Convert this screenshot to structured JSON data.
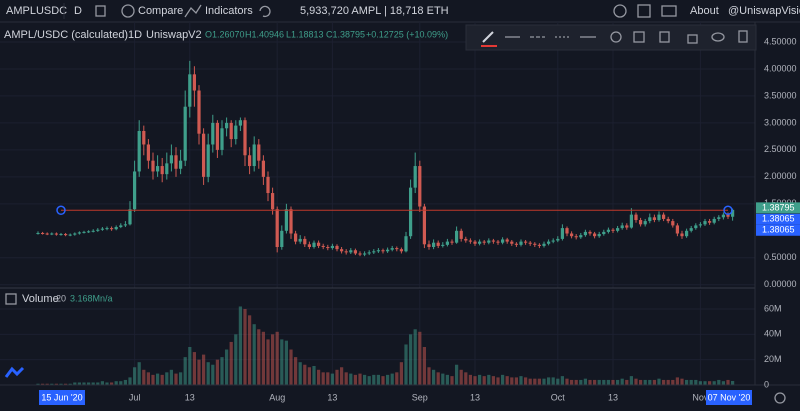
{
  "toolbar": {
    "symbol": "AMPLUSDC",
    "interval": "D",
    "compare": "Compare",
    "indicators": "Indicators",
    "supply": "5,933,720 AMPL | 18,718 ETH",
    "about": "About",
    "account": "@UniswapVision"
  },
  "chart_data": {
    "type": "candlestick",
    "title": "AMPL/USDC (calculated)",
    "interval": "1D",
    "source": "UniswapV2",
    "ohlc_labels": [
      "O1.26070",
      "H1.40946",
      "L1.18813",
      "C1.38795"
    ],
    "change": "+0.12725 (+10.09%)",
    "up_color": "#3f9f8b",
    "down_color": "#d05a52",
    "grid": true,
    "xlim": [
      -8.26,
      155.87
    ],
    "xticks": [
      {
        "value": 21,
        "label": "Jul"
      },
      {
        "value": 33,
        "label": "13"
      },
      {
        "value": 52,
        "label": "Aug"
      },
      {
        "value": 64,
        "label": "13"
      },
      {
        "value": 83,
        "label": "Sep"
      },
      {
        "value": 95,
        "label": "13"
      },
      {
        "value": 113,
        "label": "Oct"
      },
      {
        "value": 125,
        "label": "13"
      },
      {
        "value": 144,
        "label": "Nov"
      }
    ],
    "date_badges": [
      {
        "value": 5,
        "label": "15 Jun '20"
      },
      {
        "value": 150,
        "label": "07 Nov '20"
      }
    ],
    "ylim": [
      -0.06,
      4.87
    ],
    "yticks": [
      {
        "value": 4.5,
        "label": "4.50000"
      },
      {
        "value": 4,
        "label": "4.00000"
      },
      {
        "value": 3.5,
        "label": "3.50000"
      },
      {
        "value": 3,
        "label": "3.00000"
      },
      {
        "value": 2.5,
        "label": "2.50000"
      },
      {
        "value": 2,
        "label": "2.00000"
      },
      {
        "value": 1.5,
        "label": "1.50000"
      },
      {
        "value": 0.5,
        "label": "0.50000"
      },
      {
        "value": 0,
        "label": "0.00000"
      }
    ],
    "price_badges": [
      {
        "value": 1.38795,
        "label": "1.38795",
        "color": "#3f9f8b"
      },
      {
        "value": 1.38065,
        "label": "1.38065",
        "color": "#2962ff"
      },
      {
        "value": 1.38065,
        "label": "1.38065",
        "color": "#2962ff"
      }
    ],
    "open": [
      0.95,
      0.96,
      0.95,
      0.94,
      0.95,
      0.93,
      0.94,
      0.92,
      0.93,
      0.95,
      0.97,
      0.98,
      0.99,
      1.0,
      1.02,
      1.04,
      1.05,
      1.03,
      1.07,
      1.1,
      1.12,
      1.4,
      2.1,
      2.85,
      2.6,
      2.3,
      2.1,
      2.2,
      2.05,
      2.25,
      2.4,
      2.15,
      2.3,
      3.3,
      3.9,
      3.6,
      2.8,
      2.0,
      2.6,
      3.0,
      2.5,
      2.9,
      3.0,
      2.7,
      2.95,
      3.05,
      2.4,
      2.2,
      2.6,
      2.3,
      2.0,
      1.7,
      1.4,
      0.7,
      1.0,
      1.4,
      0.95,
      0.8,
      0.85,
      0.75,
      0.7,
      0.78,
      0.72,
      0.7,
      0.68,
      0.72,
      0.66,
      0.62,
      0.6,
      0.64,
      0.58,
      0.56,
      0.58,
      0.6,
      0.62,
      0.64,
      0.62,
      0.65,
      0.68,
      0.66,
      0.62,
      0.9,
      1.8,
      2.2,
      1.45,
      0.75,
      0.7,
      0.78,
      0.72,
      0.74,
      0.8,
      0.78,
      1.0,
      0.85,
      0.82,
      0.8,
      0.76,
      0.8,
      0.78,
      0.82,
      0.8,
      0.78,
      0.84,
      0.8,
      0.76,
      0.74,
      0.8,
      0.78,
      0.76,
      0.74,
      0.72,
      0.76,
      0.8,
      0.82,
      0.85,
      1.05,
      0.95,
      0.9,
      0.88,
      0.92,
      0.98,
      0.95,
      0.9,
      0.94,
      0.98,
      1.02,
      1.0,
      1.05,
      1.1,
      1.06,
      1.3,
      1.2,
      1.12,
      1.18,
      1.25,
      1.2,
      1.3,
      1.22,
      1.18,
      1.1,
      0.95,
      0.9,
      1.0,
      1.05,
      1.1,
      1.12,
      1.18,
      1.15,
      1.22,
      1.25,
      1.3,
      1.2607
    ],
    "high": [
      0.99,
      0.98,
      0.97,
      0.97,
      0.97,
      0.96,
      0.96,
      0.95,
      0.97,
      0.99,
      1.0,
      1.01,
      1.03,
      1.05,
      1.07,
      1.08,
      1.08,
      1.1,
      1.14,
      1.18,
      1.55,
      2.3,
      3.05,
      2.95,
      2.7,
      2.45,
      2.4,
      2.35,
      2.45,
      2.6,
      2.55,
      2.5,
      3.6,
      4.15,
      4.05,
      3.7,
      2.9,
      2.8,
      3.15,
      3.05,
      3.05,
      3.1,
      3.05,
      3.05,
      3.1,
      3.1,
      2.55,
      2.75,
      2.7,
      2.4,
      2.1,
      1.8,
      1.45,
      1.1,
      1.5,
      1.45,
      1.0,
      0.92,
      0.9,
      0.8,
      0.82,
      0.82,
      0.76,
      0.74,
      0.76,
      0.75,
      0.7,
      0.66,
      0.68,
      0.67,
      0.62,
      0.62,
      0.64,
      0.66,
      0.68,
      0.67,
      0.69,
      0.72,
      0.71,
      0.69,
      0.98,
      1.95,
      2.45,
      2.3,
      1.5,
      0.82,
      0.84,
      0.82,
      0.79,
      0.85,
      0.84,
      1.08,
      1.04,
      0.89,
      0.86,
      0.83,
      0.84,
      0.83,
      0.86,
      0.85,
      0.83,
      0.88,
      0.87,
      0.83,
      0.79,
      0.84,
      0.83,
      0.81,
      0.79,
      0.77,
      0.8,
      0.84,
      0.86,
      0.9,
      1.12,
      1.08,
      0.99,
      0.94,
      0.96,
      1.02,
      1.01,
      0.98,
      0.98,
      1.02,
      1.06,
      1.05,
      1.09,
      1.15,
      1.14,
      1.42,
      1.34,
      1.24,
      1.22,
      1.32,
      1.3,
      1.36,
      1.34,
      1.26,
      1.22,
      1.14,
      1.0,
      1.04,
      1.09,
      1.14,
      1.16,
      1.22,
      1.22,
      1.26,
      1.29,
      1.34,
      1.34,
      1.40946
    ],
    "low": [
      0.93,
      0.93,
      0.92,
      0.92,
      0.91,
      0.91,
      0.9,
      0.9,
      0.91,
      0.93,
      0.95,
      0.96,
      0.97,
      0.98,
      1.0,
      1.01,
      1.0,
      1.01,
      1.05,
      1.07,
      1.1,
      1.35,
      2.0,
      2.4,
      2.15,
      1.95,
      2.0,
      1.9,
      1.95,
      2.1,
      2.0,
      2.05,
      2.2,
      3.1,
      3.3,
      2.6,
      1.85,
      1.9,
      2.45,
      2.35,
      2.4,
      2.75,
      2.55,
      2.6,
      2.85,
      2.2,
      2.05,
      2.1,
      2.15,
      1.85,
      1.55,
      1.3,
      0.6,
      0.65,
      0.95,
      0.85,
      0.75,
      0.76,
      0.7,
      0.66,
      0.67,
      0.68,
      0.66,
      0.64,
      0.65,
      0.62,
      0.58,
      0.56,
      0.57,
      0.55,
      0.53,
      0.53,
      0.55,
      0.57,
      0.59,
      0.58,
      0.59,
      0.62,
      0.62,
      0.58,
      0.6,
      0.85,
      1.7,
      1.35,
      0.68,
      0.65,
      0.66,
      0.68,
      0.69,
      0.71,
      0.74,
      0.76,
      0.8,
      0.78,
      0.76,
      0.72,
      0.73,
      0.74,
      0.75,
      0.76,
      0.74,
      0.75,
      0.76,
      0.72,
      0.7,
      0.71,
      0.74,
      0.72,
      0.7,
      0.68,
      0.69,
      0.73,
      0.77,
      0.79,
      0.82,
      0.9,
      0.86,
      0.84,
      0.85,
      0.89,
      0.91,
      0.86,
      0.87,
      0.91,
      0.95,
      0.96,
      0.97,
      1.02,
      1.02,
      1.04,
      1.15,
      1.08,
      1.08,
      1.14,
      1.16,
      1.17,
      1.18,
      1.14,
      1.06,
      0.9,
      0.85,
      0.87,
      0.97,
      1.02,
      1.06,
      1.09,
      1.11,
      1.12,
      1.18,
      1.21,
      1.22,
      1.18813
    ],
    "close": [
      0.96,
      0.95,
      0.94,
      0.95,
      0.93,
      0.94,
      0.92,
      0.93,
      0.95,
      0.97,
      0.98,
      0.99,
      1.0,
      1.02,
      1.04,
      1.05,
      1.03,
      1.07,
      1.1,
      1.12,
      1.4,
      2.1,
      2.85,
      2.6,
      2.3,
      2.1,
      2.2,
      2.05,
      2.25,
      2.4,
      2.15,
      2.3,
      3.3,
      3.9,
      3.6,
      2.8,
      2.0,
      2.6,
      3.0,
      2.5,
      2.9,
      3.0,
      2.7,
      2.95,
      3.05,
      2.4,
      2.2,
      2.6,
      2.3,
      2.0,
      1.7,
      1.4,
      0.7,
      1.0,
      1.4,
      0.95,
      0.8,
      0.85,
      0.75,
      0.7,
      0.78,
      0.72,
      0.7,
      0.68,
      0.72,
      0.66,
      0.62,
      0.6,
      0.64,
      0.58,
      0.56,
      0.58,
      0.6,
      0.62,
      0.64,
      0.62,
      0.65,
      0.68,
      0.66,
      0.62,
      0.9,
      1.8,
      2.2,
      1.45,
      0.75,
      0.7,
      0.78,
      0.72,
      0.74,
      0.8,
      0.78,
      1.0,
      0.85,
      0.82,
      0.8,
      0.76,
      0.8,
      0.78,
      0.82,
      0.8,
      0.78,
      0.84,
      0.8,
      0.76,
      0.74,
      0.8,
      0.78,
      0.76,
      0.74,
      0.72,
      0.76,
      0.8,
      0.82,
      0.85,
      1.05,
      0.95,
      0.9,
      0.88,
      0.92,
      0.98,
      0.95,
      0.9,
      0.94,
      0.98,
      1.02,
      1.0,
      1.05,
      1.1,
      1.06,
      1.3,
      1.2,
      1.12,
      1.18,
      1.25,
      1.2,
      1.3,
      1.22,
      1.18,
      1.1,
      0.95,
      0.9,
      1.0,
      1.05,
      1.1,
      1.12,
      1.18,
      1.15,
      1.22,
      1.25,
      1.3,
      1.2607,
      1.38795
    ],
    "volume_pane": {
      "title": "Volume",
      "length": "20",
      "last": "3.168M",
      "ma": "n/a",
      "ylim": [
        0,
        75
      ],
      "yticks": [
        {
          "value": 60,
          "label": "60M"
        },
        {
          "value": 40,
          "label": "40M"
        },
        {
          "value": 20,
          "label": "20M"
        },
        0
      ],
      "values": [
        1,
        1,
        1,
        1,
        1,
        1,
        1,
        1,
        2,
        2,
        2,
        2,
        2,
        2,
        3,
        2,
        2,
        3,
        3,
        4,
        6,
        14,
        18,
        12,
        10,
        8,
        9,
        8,
        10,
        12,
        9,
        10,
        22,
        30,
        26,
        20,
        24,
        18,
        16,
        20,
        22,
        28,
        34,
        40,
        62,
        60,
        55,
        48,
        44,
        42,
        36,
        40,
        42,
        36,
        35,
        28,
        22,
        18,
        16,
        14,
        15,
        12,
        10,
        10,
        9,
        12,
        14,
        10,
        9,
        8,
        9,
        8,
        7,
        8,
        8,
        7,
        8,
        9,
        10,
        18,
        32,
        40,
        44,
        42,
        30,
        14,
        12,
        10,
        9,
        8,
        7,
        16,
        12,
        10,
        8,
        7,
        8,
        7,
        8,
        7,
        6,
        8,
        7,
        6,
        6,
        7,
        6,
        5,
        5,
        5,
        5,
        6,
        6,
        5,
        7,
        5,
        4,
        4,
        4,
        5,
        4,
        4,
        4,
        4,
        4,
        4,
        4,
        5,
        4,
        7,
        5,
        4,
        4,
        4,
        4,
        5,
        4,
        4,
        4,
        6,
        5,
        4,
        4,
        4,
        3,
        3,
        3,
        3,
        4,
        3,
        4,
        3.168
      ]
    }
  }
}
